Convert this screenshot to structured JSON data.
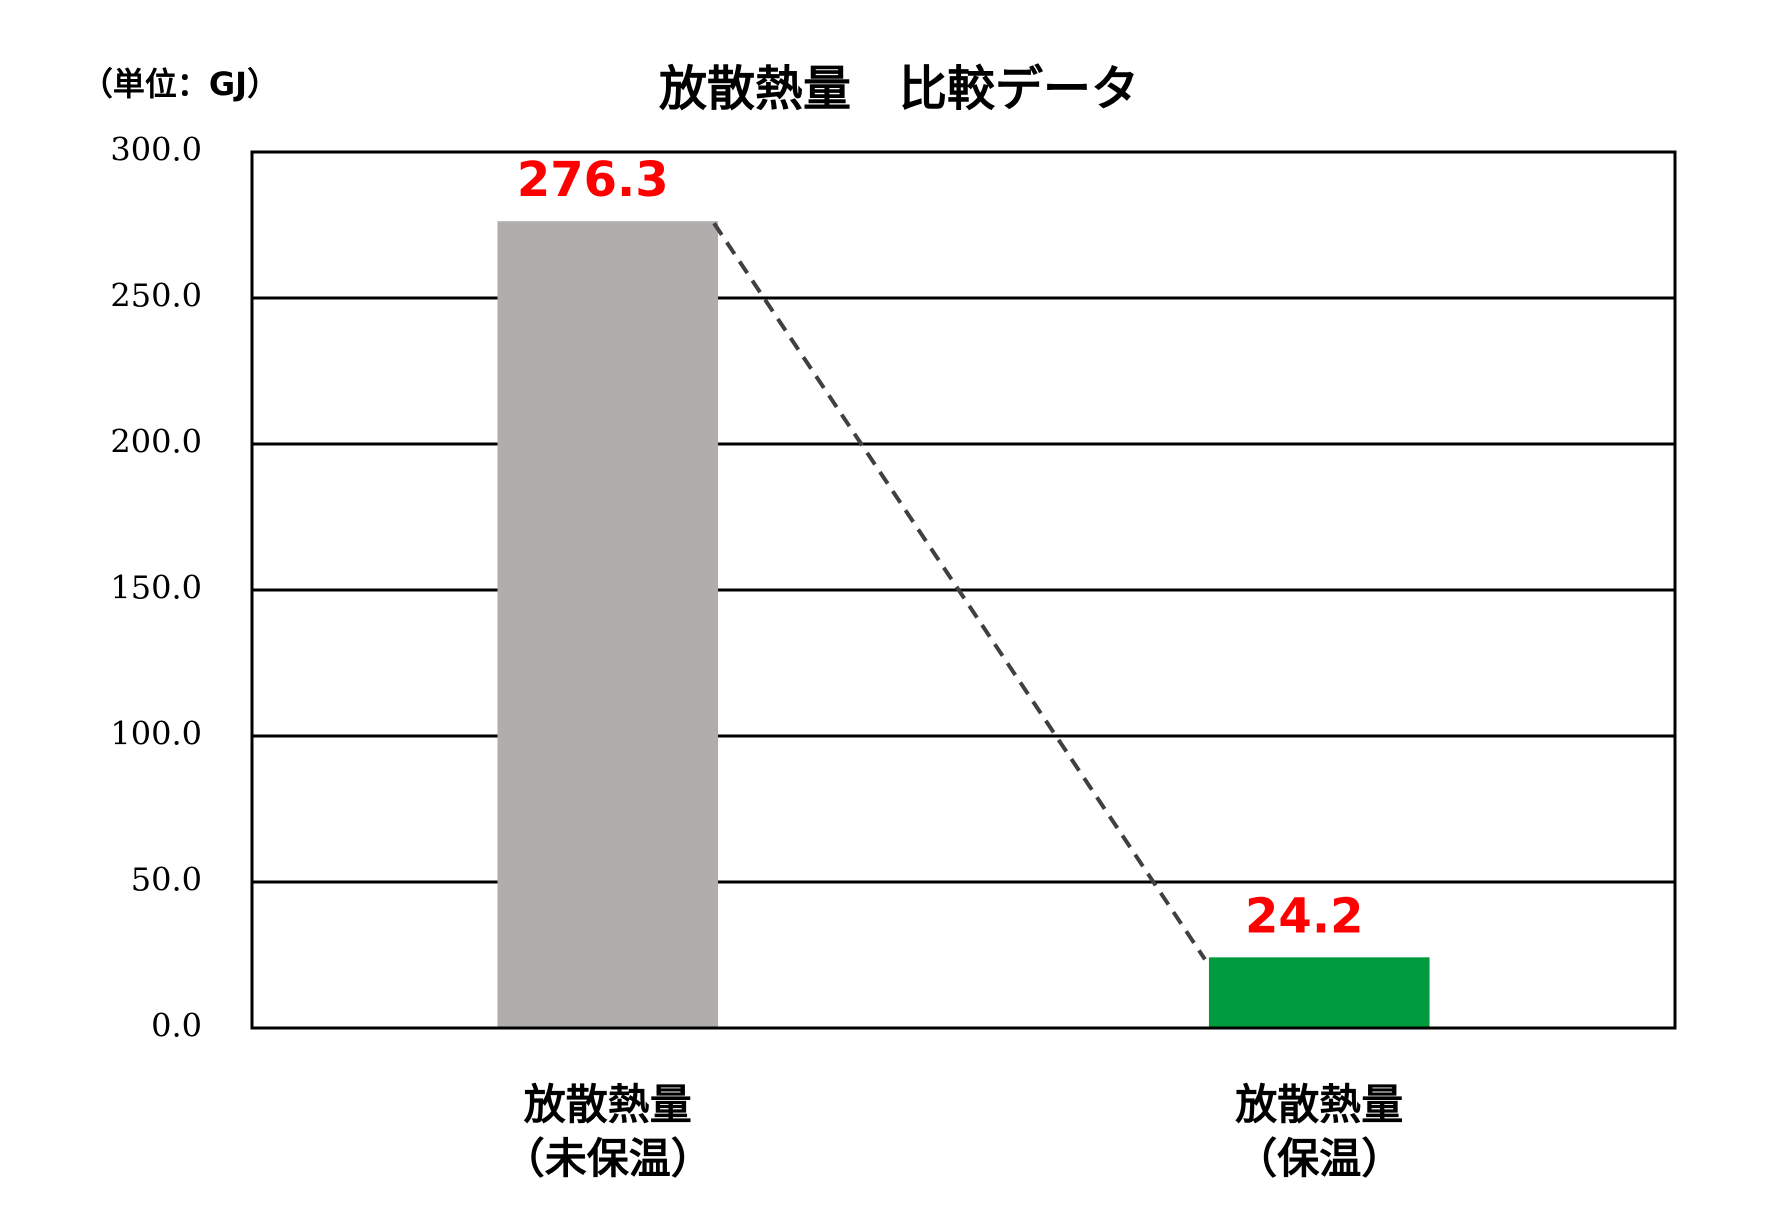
{
  "chart_data": {
    "type": "bar",
    "title": "放散熱量　比較データ",
    "unit_label": "（単位：GJ）",
    "categories": [
      "放散熱量\n（未保温）",
      "放散熱量\n（保温）"
    ],
    "values": [
      276.3,
      24.2
    ],
    "colors": [
      "#b0adac",
      "#009b3f"
    ],
    "value_label_color": "#ff0000",
    "ylim": [
      0,
      300
    ],
    "yticks": [
      {
        "value": 0,
        "label": "0.0"
      },
      {
        "value": 50,
        "label": "50.0"
      },
      {
        "value": 100,
        "label": "100.0"
      },
      {
        "value": 150,
        "label": "150.0"
      },
      {
        "value": 200,
        "label": "200.0"
      },
      {
        "value": 250,
        "label": "250.0"
      },
      {
        "value": 300,
        "label": "300.0"
      }
    ],
    "grid": true,
    "connector": true
  }
}
